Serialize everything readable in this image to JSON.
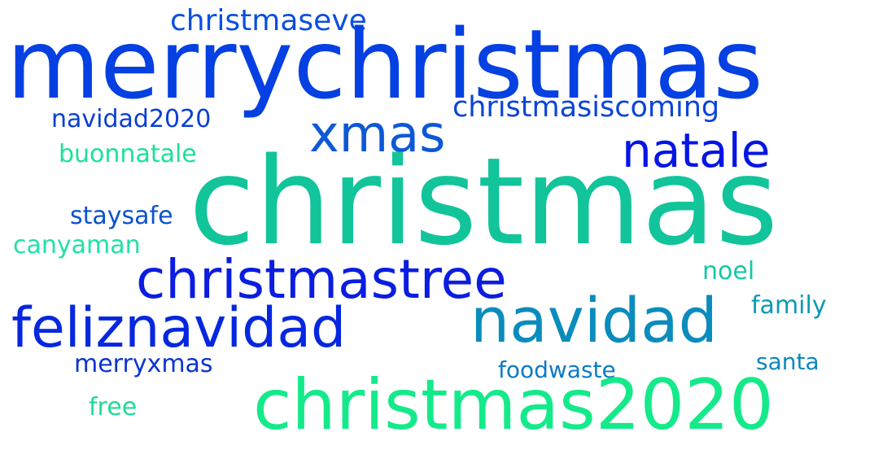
{
  "word_cloud": {
    "words": [
      {
        "text": "christmaseve",
        "color": "#0a4fe0"
      },
      {
        "text": "merrychristmas",
        "color": "#0440e2"
      },
      {
        "text": "xmas",
        "color": "#0d58d6"
      },
      {
        "text": "christmasiscoming",
        "color": "#0b44d8"
      },
      {
        "text": "navidad2020",
        "color": "#0a3fd4"
      },
      {
        "text": "natale",
        "color": "#0515e6"
      },
      {
        "text": "buonnatale",
        "color": "#1de09a"
      },
      {
        "text": "christmas",
        "color": "#12c49a"
      },
      {
        "text": "staysafe",
        "color": "#0a53cc"
      },
      {
        "text": "canyaman",
        "color": "#22e0a8"
      },
      {
        "text": "christmastree",
        "color": "#0b1de0"
      },
      {
        "text": "noel",
        "color": "#14c8a8"
      },
      {
        "text": "feliznavidad",
        "color": "#0527e0"
      },
      {
        "text": "navidad",
        "color": "#0a8cbc"
      },
      {
        "text": "family",
        "color": "#0c9ab6"
      },
      {
        "text": "merryxmas",
        "color": "#0a33d4"
      },
      {
        "text": "foodwaste",
        "color": "#0b7bc4"
      },
      {
        "text": "santa",
        "color": "#0c86be"
      },
      {
        "text": "free",
        "color": "#1fdc98"
      },
      {
        "text": "christmas2020",
        "color": "#14ea8a"
      }
    ]
  }
}
